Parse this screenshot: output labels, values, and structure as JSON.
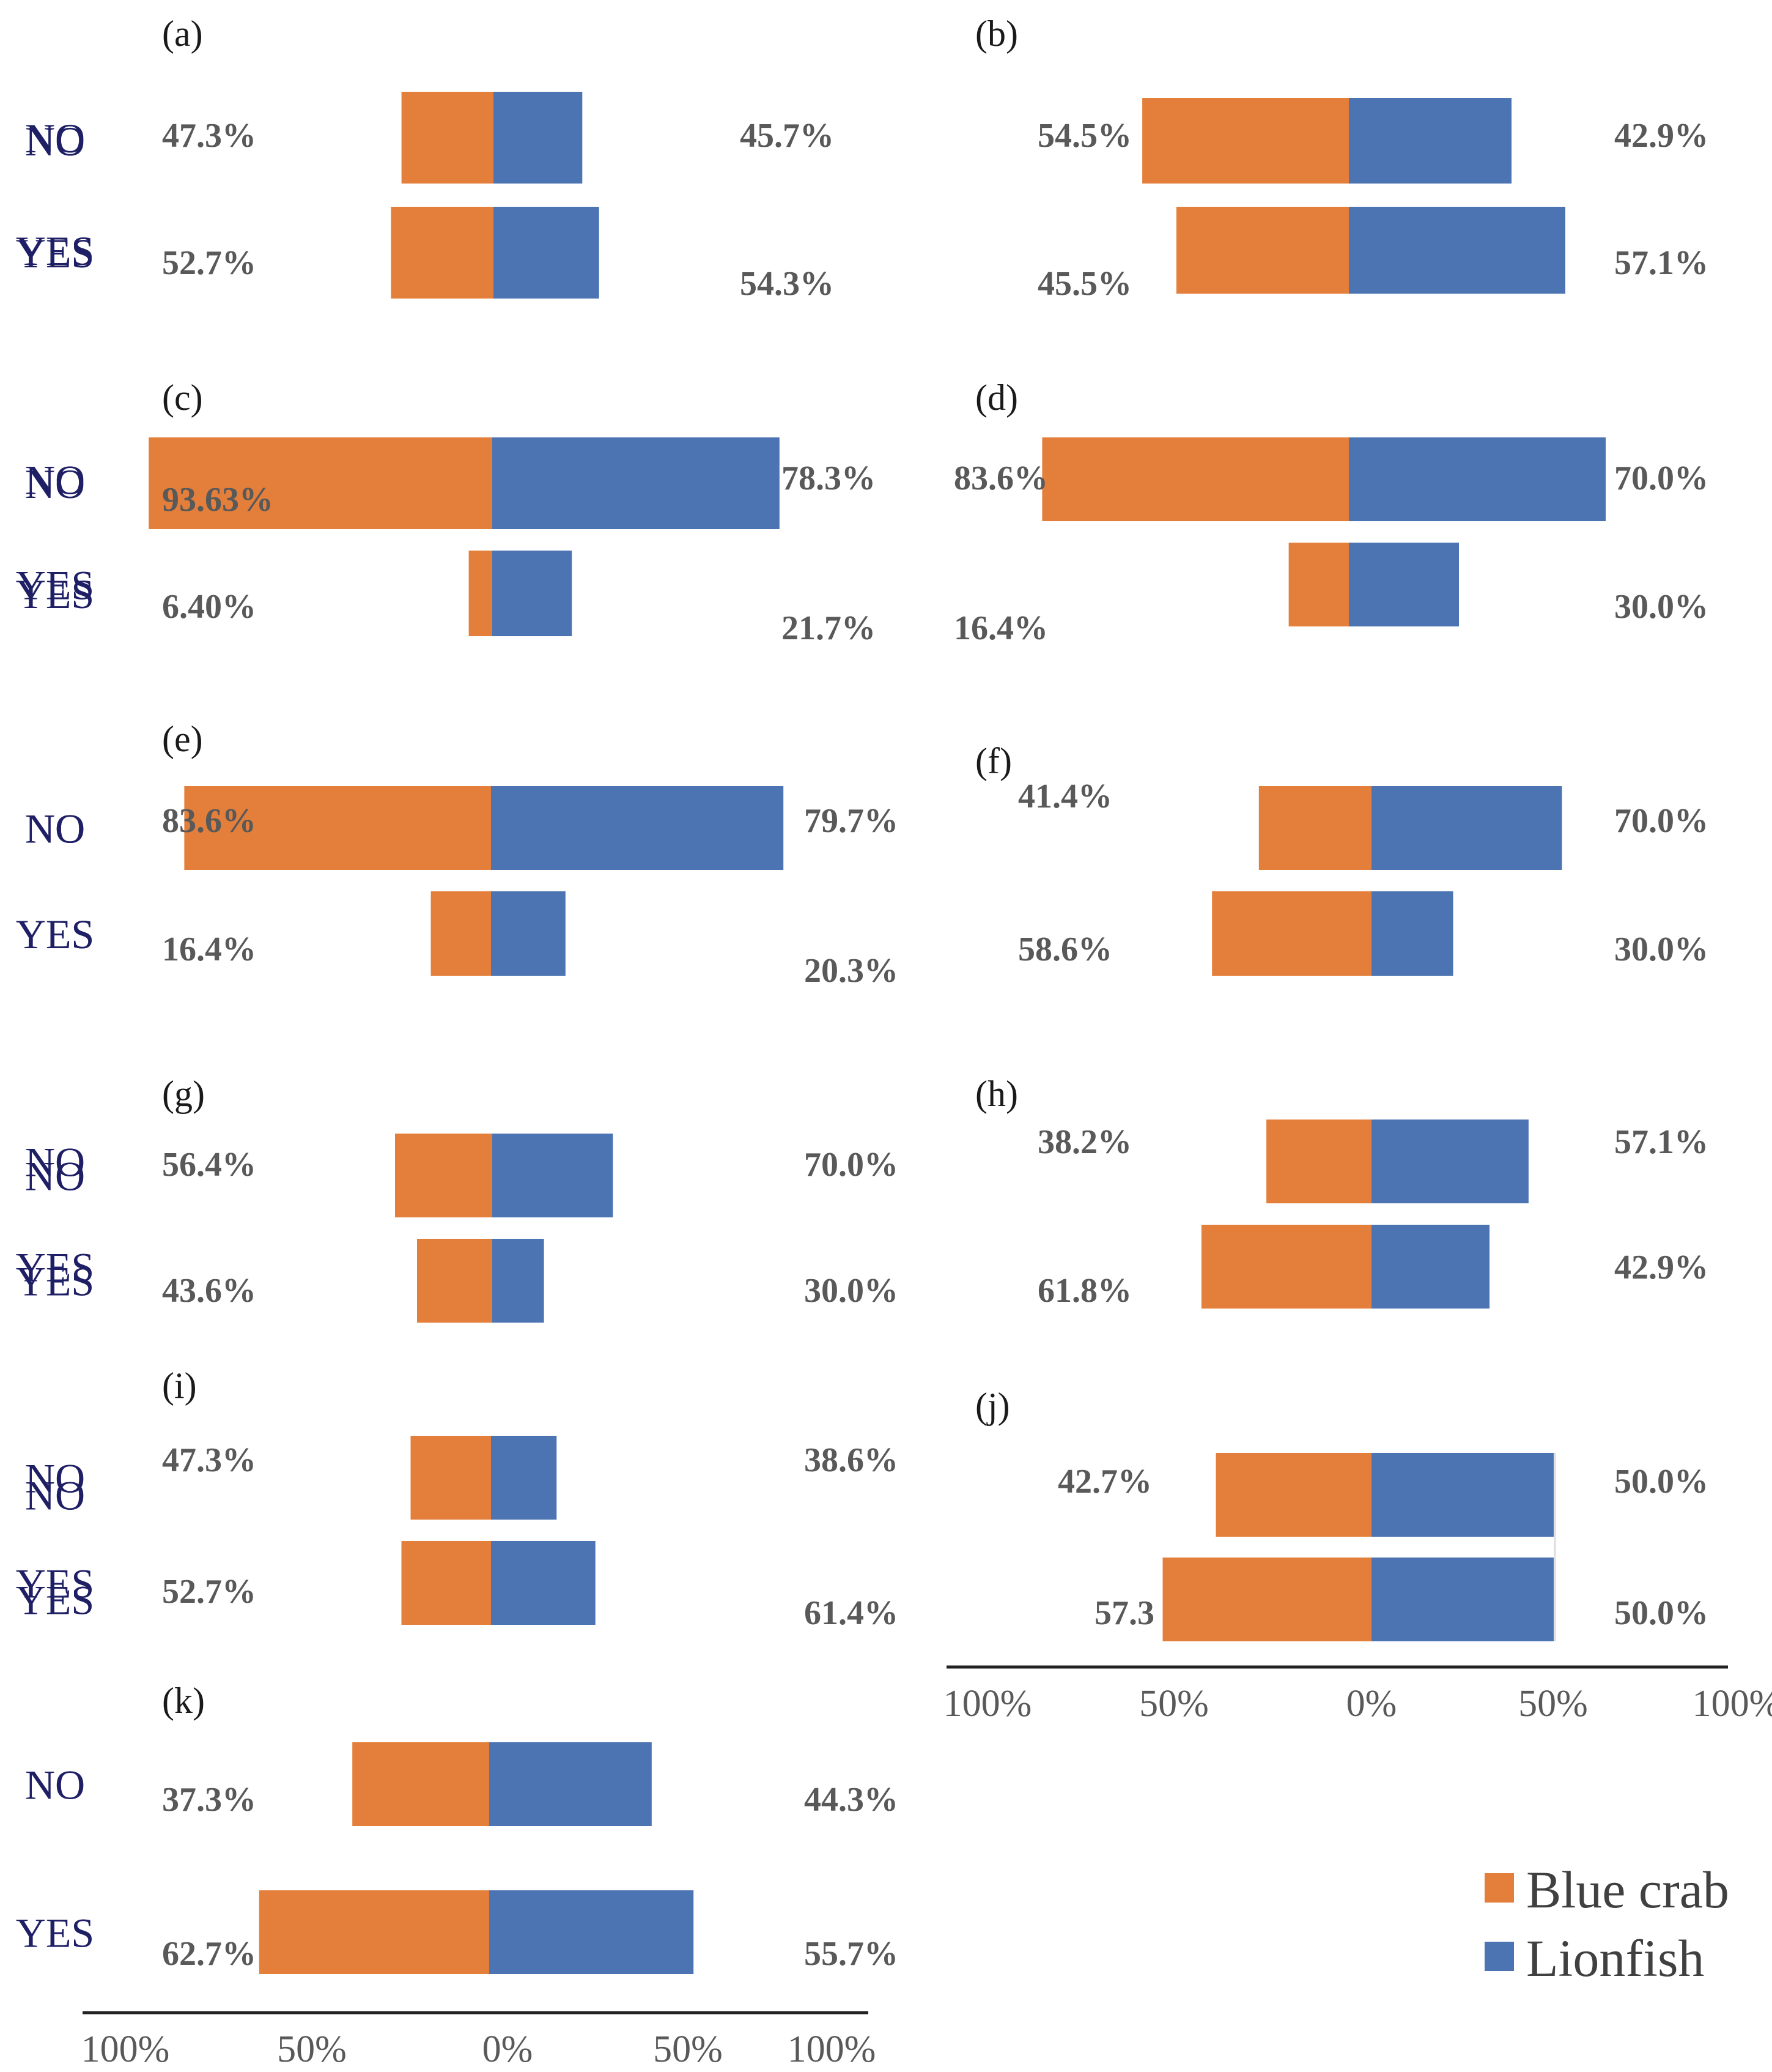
{
  "chart_data": {
    "type": "bar",
    "orientation": "horizontal-diverging",
    "categories": [
      "NO",
      "YES"
    ],
    "legend": [
      {
        "name": "Blue crab",
        "color": "#e47f3b"
      },
      {
        "name": "Lionfish",
        "color": "#4c74b2"
      }
    ],
    "axis_ticks": [
      "100%",
      "50%",
      "0%",
      "50%",
      "100%"
    ],
    "xlim": [
      -100,
      100
    ],
    "panels": [
      {
        "label": "(a)",
        "bars": [
          {
            "category": "NO",
            "blue_crab": 47.3,
            "lionfish": 45.7,
            "blue_crab_label": "47.3%",
            "lionfish_label": "45.7%"
          },
          {
            "category": "YES",
            "blue_crab": 52.7,
            "lionfish": 54.3,
            "blue_crab_label": "52.7%",
            "lionfish_label": "54.3%"
          }
        ]
      },
      {
        "label": "(b)",
        "bars": [
          {
            "category": "NO",
            "blue_crab": 54.5,
            "lionfish": 42.9,
            "blue_crab_label": "54.5%",
            "lionfish_label": "42.9%"
          },
          {
            "category": "YES",
            "blue_crab": 45.5,
            "lionfish": 57.1,
            "blue_crab_label": "45.5%",
            "lionfish_label": "57.1%"
          }
        ]
      },
      {
        "label": "(c)",
        "bars": [
          {
            "category": "NO",
            "blue_crab": 93.63,
            "lionfish": 78.3,
            "blue_crab_label": "93.63%",
            "lionfish_label": "78.3%"
          },
          {
            "category": "YES",
            "blue_crab": 6.4,
            "lionfish": 21.7,
            "blue_crab_label": "6.40%",
            "lionfish_label": "21.7%"
          }
        ]
      },
      {
        "label": "(d)",
        "bars": [
          {
            "category": "NO",
            "blue_crab": 83.6,
            "lionfish": 70.0,
            "blue_crab_label": "83.6%",
            "lionfish_label": "70.0%"
          },
          {
            "category": "YES",
            "blue_crab": 16.4,
            "lionfish": 30.0,
            "blue_crab_label": "16.4%",
            "lionfish_label": "30.0%"
          }
        ]
      },
      {
        "label": "(e)",
        "bars": [
          {
            "category": "NO",
            "blue_crab": 83.6,
            "lionfish": 79.7,
            "blue_crab_label": "83.6%",
            "lionfish_label": "79.7%"
          },
          {
            "category": "YES",
            "blue_crab": 16.4,
            "lionfish": 20.3,
            "blue_crab_label": "16.4%",
            "lionfish_label": "20.3%"
          }
        ]
      },
      {
        "label": "(f)",
        "bars": [
          {
            "category": "NO",
            "blue_crab": 41.4,
            "lionfish": 70.0,
            "blue_crab_label": "41.4%",
            "lionfish_label": "70.0%"
          },
          {
            "category": "YES",
            "blue_crab": 58.6,
            "lionfish": 30.0,
            "blue_crab_label": "58.6%",
            "lionfish_label": "30.0%"
          }
        ]
      },
      {
        "label": "(g)",
        "bars": [
          {
            "category": "NO",
            "blue_crab": 56.4,
            "lionfish": 70.0,
            "blue_crab_label": "56.4%",
            "lionfish_label": "70.0%"
          },
          {
            "category": "YES",
            "blue_crab": 43.6,
            "lionfish": 30.0,
            "blue_crab_label": "43.6%",
            "lionfish_label": "30.0%"
          }
        ]
      },
      {
        "label": "(h)",
        "bars": [
          {
            "category": "NO",
            "blue_crab": 38.2,
            "lionfish": 57.1,
            "blue_crab_label": "38.2%",
            "lionfish_label": "57.1%"
          },
          {
            "category": "YES",
            "blue_crab": 61.8,
            "lionfish": 42.9,
            "blue_crab_label": "61.8%",
            "lionfish_label": "42.9%"
          }
        ]
      },
      {
        "label": "(i)",
        "bars": [
          {
            "category": "NO",
            "blue_crab": 47.3,
            "lionfish": 38.6,
            "blue_crab_label": "47.3%",
            "lionfish_label": "38.6%"
          },
          {
            "category": "YES",
            "blue_crab": 52.7,
            "lionfish": 61.4,
            "blue_crab_label": "52.7%",
            "lionfish_label": "61.4%"
          }
        ]
      },
      {
        "label": "(j)",
        "bars": [
          {
            "category": "NO",
            "blue_crab": 42.7,
            "lionfish": 50.0,
            "blue_crab_label": "42.7%",
            "lionfish_label": "50.0%"
          },
          {
            "category": "YES",
            "blue_crab": 57.3,
            "lionfish": 50.0,
            "blue_crab_label": "57.3",
            "lionfish_label": "50.0%"
          }
        ]
      },
      {
        "label": "(k)",
        "bars": [
          {
            "category": "NO",
            "blue_crab": 37.3,
            "lionfish": 44.3,
            "blue_crab_label": "37.3%",
            "lionfish_label": "44.3%"
          },
          {
            "category": "YES",
            "blue_crab": 62.7,
            "lionfish": 55.7,
            "blue_crab_label": "62.7%",
            "lionfish_label": "55.7%"
          }
        ]
      }
    ]
  }
}
